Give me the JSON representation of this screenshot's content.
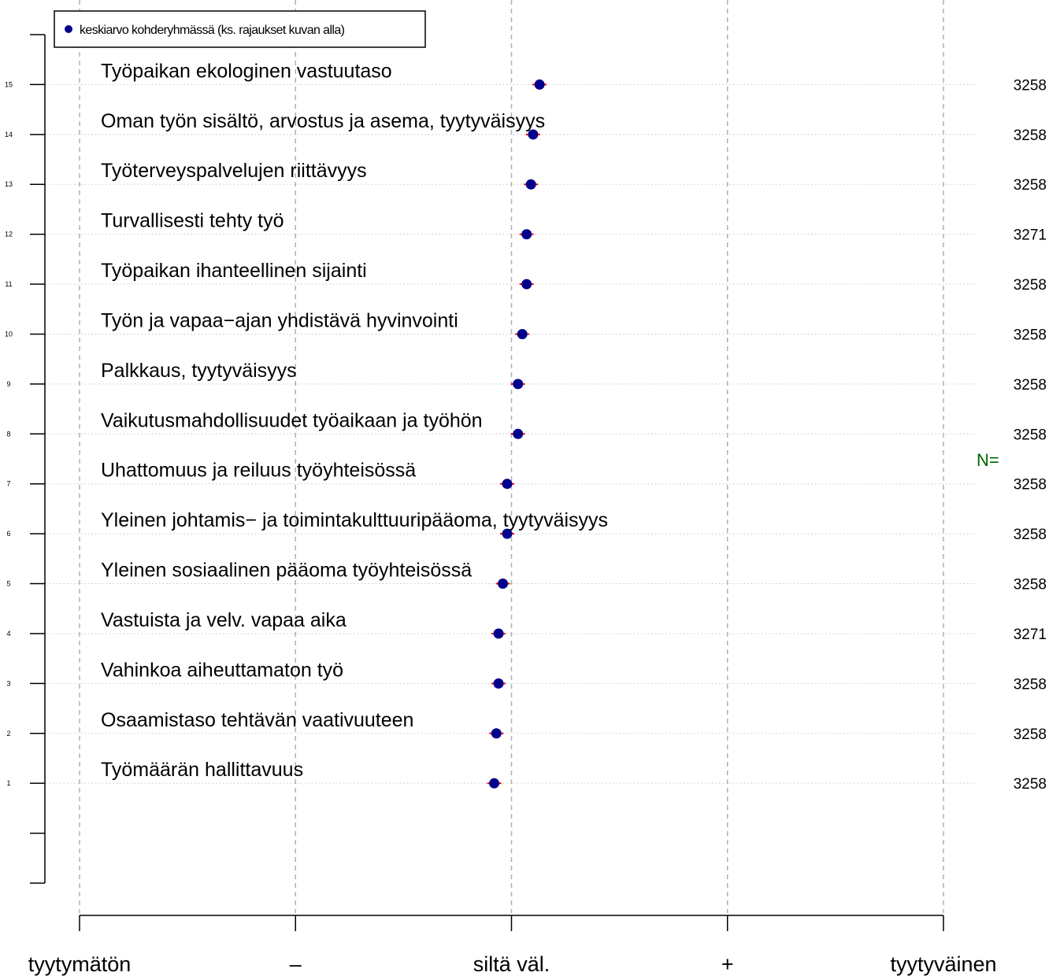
{
  "chart_data": {
    "type": "scatter",
    "x_categories": [
      "tyytymätön",
      "–",
      "siltä väl.",
      "+",
      "tyytyväinen"
    ],
    "xlim": [
      1,
      5
    ],
    "ylim": [
      -1,
      16
    ],
    "legend": {
      "label": "keskiarvo kohderyhmässä (ks. rajaukset kuvan alla)",
      "placement": "top-left"
    },
    "n_header": "N=",
    "colors": {
      "point": "#00008b",
      "error_bar": "#ff0000",
      "n_header": "#006400",
      "vgrid": "#b0b0b0",
      "hgrid": "#c8c8c8"
    },
    "items": [
      {
        "y": 15,
        "label": "Työpaikan ekologinen vastuutaso",
        "mean": 3.13,
        "n": "3258"
      },
      {
        "y": 14,
        "label": "Oman työn sisältö, arvostus ja asema, tyytyväisyys",
        "mean": 3.1,
        "n": "3258"
      },
      {
        "y": 13,
        "label": "Työterveyspalvelujen riittävyys",
        "mean": 3.09,
        "n": "3258"
      },
      {
        "y": 12,
        "label": "Turvallisesti tehty työ",
        "mean": 3.07,
        "n": "3271"
      },
      {
        "y": 11,
        "label": "Työpaikan ihanteellinen sijainti",
        "mean": 3.07,
        "n": "3258"
      },
      {
        "y": 10,
        "label": "Työn ja vapaa−ajan yhdistävä hyvinvointi",
        "mean": 3.05,
        "n": "3258"
      },
      {
        "y": 9,
        "label": "Palkkaus, tyytyväisyys",
        "mean": 3.03,
        "n": "3258"
      },
      {
        "y": 8,
        "label": "Vaikutusmahdollisuudet työaikaan ja työhön",
        "mean": 3.03,
        "n": "3258"
      },
      {
        "y": 7,
        "label": "Uhattomuus ja reiluus työyhteisössä",
        "mean": 2.98,
        "n": "3258"
      },
      {
        "y": 6,
        "label": "Yleinen johtamis− ja toimintakulttuuripääoma, tyytyväisyys",
        "mean": 2.98,
        "n": "3258"
      },
      {
        "y": 5,
        "label": "Yleinen sosiaalinen pääoma työyhteisössä",
        "mean": 2.96,
        "n": "3258"
      },
      {
        "y": 4,
        "label": "Vastuista ja velv. vapaa aika",
        "mean": 2.94,
        "n": "3271"
      },
      {
        "y": 3,
        "label": "Vahinkoa aiheuttamaton työ",
        "mean": 2.94,
        "n": "3258"
      },
      {
        "y": 2,
        "label": "Osaamistaso tehtävän vaativuuteen",
        "mean": 2.93,
        "n": "3258"
      },
      {
        "y": 1,
        "label": "Työmäärän hallittavuus",
        "mean": 2.92,
        "n": "3258"
      }
    ]
  }
}
